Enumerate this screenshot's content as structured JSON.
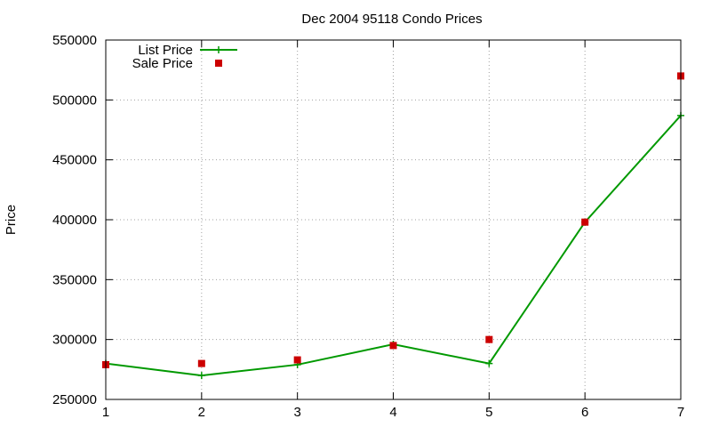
{
  "chart_data": {
    "type": "line",
    "title": "Dec 2004 95118 Condo Prices",
    "xlabel": "",
    "ylabel": "Price",
    "x": [
      1,
      2,
      3,
      4,
      5,
      6,
      7
    ],
    "xlim": [
      1,
      7
    ],
    "ylim": [
      250000,
      550000
    ],
    "yticks": [
      250000,
      300000,
      350000,
      400000,
      450000,
      500000,
      550000
    ],
    "grid": true,
    "legend_position": "top-left",
    "series": [
      {
        "name": "List Price",
        "style": "line+cross",
        "color": "#009900",
        "values": [
          280000,
          270000,
          279000,
          296000,
          280000,
          398000,
          487000
        ]
      },
      {
        "name": "Sale Price",
        "style": "square-points",
        "color": "#cc0000",
        "values": [
          279000,
          280000,
          283000,
          295000,
          300000,
          398000,
          520000
        ]
      }
    ]
  }
}
